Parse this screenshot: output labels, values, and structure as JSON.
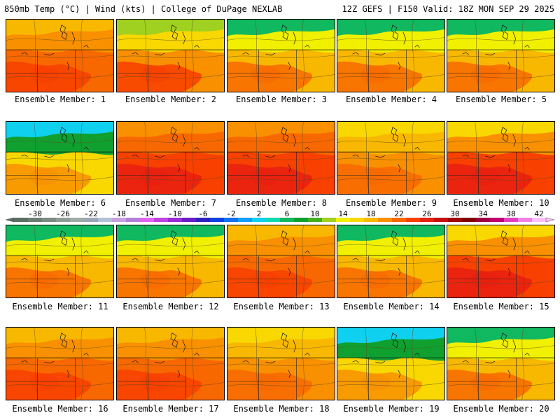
{
  "header": {
    "left_title": "850mb Temp (°C) | Wind (kts) | College of DuPage NEXLAB",
    "right_title": "12Z GEFS | F150 Valid: 18Z MON SEP 29 2025"
  },
  "member_label_prefix": "Ensemble Member: ",
  "members": [
    {
      "id": 1,
      "label": "Ensemble Member: 1",
      "pattern": "warm"
    },
    {
      "id": 2,
      "label": "Ensemble Member: 2",
      "pattern": "mild-north"
    },
    {
      "id": 3,
      "label": "Ensemble Member: 3",
      "pattern": "cool-north"
    },
    {
      "id": 4,
      "label": "Ensemble Member: 4",
      "pattern": "cool-north"
    },
    {
      "id": 5,
      "label": "Ensemble Member: 5",
      "pattern": "cool-north"
    },
    {
      "id": 6,
      "label": "Ensemble Member: 6",
      "pattern": "cold-north"
    },
    {
      "id": 7,
      "label": "Ensemble Member: 7",
      "pattern": "hot"
    },
    {
      "id": 8,
      "label": "Ensemble Member: 8",
      "pattern": "hot"
    },
    {
      "id": 9,
      "label": "Ensemble Member: 9",
      "pattern": "warm-yellow"
    },
    {
      "id": 10,
      "label": "Ensemble Member: 10",
      "pattern": "hot-west"
    },
    {
      "id": 11,
      "label": "Ensemble Member: 11",
      "pattern": "cool-north"
    },
    {
      "id": 12,
      "label": "Ensemble Member: 12",
      "pattern": "cool-north"
    },
    {
      "id": 13,
      "label": "Ensemble Member: 13",
      "pattern": "warm"
    },
    {
      "id": 14,
      "label": "Ensemble Member: 14",
      "pattern": "cool-north"
    },
    {
      "id": 15,
      "label": "Ensemble Member: 15",
      "pattern": "hot-west"
    },
    {
      "id": 16,
      "label": "Ensemble Member: 16",
      "pattern": "warm"
    },
    {
      "id": 17,
      "label": "Ensemble Member: 17",
      "pattern": "warm"
    },
    {
      "id": 18,
      "label": "Ensemble Member: 18",
      "pattern": "warm-yellow"
    },
    {
      "id": 19,
      "label": "Ensemble Member: 19",
      "pattern": "cold-north"
    },
    {
      "id": 20,
      "label": "Ensemble Member: 20",
      "pattern": "cool-north"
    }
  ],
  "colorbar": {
    "unit": "°C",
    "labels": [
      "-30",
      "-26",
      "-22",
      "-18",
      "-14",
      "-10",
      "-6",
      "-2",
      "2",
      "6",
      "10",
      "14",
      "18",
      "22",
      "26",
      "30",
      "34",
      "38",
      "42"
    ],
    "bins": [
      {
        "value": -32,
        "color": "#5a6e63"
      },
      {
        "value": -30,
        "color": "#6a7d72"
      },
      {
        "value": -28,
        "color": "#7c8c84"
      },
      {
        "value": -26,
        "color": "#8e9c95"
      },
      {
        "value": -24,
        "color": "#a0aaa6"
      },
      {
        "value": -22,
        "color": "#9aa6b4"
      },
      {
        "value": -20,
        "color": "#b4bfd8"
      },
      {
        "value": -18,
        "color": "#c8a0e0"
      },
      {
        "value": -16,
        "color": "#b47fd8"
      },
      {
        "value": -14,
        "color": "#e064f0"
      },
      {
        "value": -12,
        "color": "#c040e0"
      },
      {
        "value": -10,
        "color": "#9a2ad6"
      },
      {
        "value": -8,
        "color": "#6a1cc8"
      },
      {
        "value": -6,
        "color": "#3020c0"
      },
      {
        "value": -4,
        "color": "#1040e0"
      },
      {
        "value": -2,
        "color": "#1070f0"
      },
      {
        "value": 0,
        "color": "#10a0f8"
      },
      {
        "value": 2,
        "color": "#10d0f0"
      },
      {
        "value": 4,
        "color": "#10d8b0"
      },
      {
        "value": 6,
        "color": "#10b860"
      },
      {
        "value": 8,
        "color": "#10a030"
      },
      {
        "value": 10,
        "color": "#40b020"
      },
      {
        "value": 12,
        "color": "#a0d020"
      },
      {
        "value": 14,
        "color": "#f0f000"
      },
      {
        "value": 16,
        "color": "#f8d800"
      },
      {
        "value": 18,
        "color": "#f8b800"
      },
      {
        "value": 20,
        "color": "#f89000"
      },
      {
        "value": 22,
        "color": "#f86800"
      },
      {
        "value": 24,
        "color": "#f84000"
      },
      {
        "value": 26,
        "color": "#e82010"
      },
      {
        "value": 28,
        "color": "#c81010"
      },
      {
        "value": 30,
        "color": "#a00808"
      },
      {
        "value": 32,
        "color": "#800000"
      },
      {
        "value": 34,
        "color": "#a00040"
      },
      {
        "value": 36,
        "color": "#c00070"
      },
      {
        "value": 38,
        "color": "#e040c0"
      },
      {
        "value": 40,
        "color": "#f080e8"
      },
      {
        "value": 42,
        "color": "#f8c0f8"
      }
    ]
  },
  "palettes": {
    "warm": [
      "#f8b800",
      "#f89000",
      "#f86800",
      "#f84000"
    ],
    "hot": [
      "#f89000",
      "#f86800",
      "#f84000",
      "#e82010"
    ],
    "hot-west": [
      "#f8d800",
      "#f89000",
      "#f84000",
      "#e82010"
    ],
    "warm-yellow": [
      "#f8d800",
      "#f8b800",
      "#f89000",
      "#f86800"
    ],
    "mild-north": [
      "#a0d020",
      "#f8d800",
      "#f89000",
      "#f84000"
    ],
    "cool-north": [
      "#10b860",
      "#f0f000",
      "#f8b800",
      "#f86800"
    ],
    "cold-north": [
      "#10d0f0",
      "#10a030",
      "#f8d800",
      "#f89000"
    ]
  }
}
